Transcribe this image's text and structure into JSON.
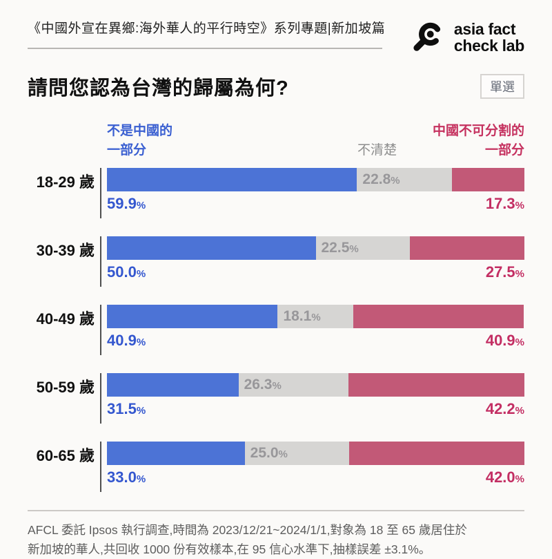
{
  "header": {
    "series_title": "《中國外宣在異鄉:海外華人的平行時空》系列專題|新加坡篇",
    "logo": {
      "icon": "magnifier-logo-icon",
      "line1": "asia fact",
      "line2": "check lab"
    }
  },
  "question": {
    "title": "請問您認為台灣的歸屬為何?",
    "badge": "單選"
  },
  "chart_data": {
    "type": "bar",
    "stacked": true,
    "orientation": "horizontal",
    "xlim": [
      0,
      100
    ],
    "unit": "%",
    "categories": [
      "18-29 歲",
      "30-39 歲",
      "40-49 歲",
      "50-59 歲",
      "60-65 歲"
    ],
    "series": [
      {
        "key": "not-part-of-china",
        "name": "不是中國的一部分",
        "color": "#4c73d6",
        "text_color": "#3457cf",
        "values": [
          59.9,
          50.0,
          40.9,
          31.5,
          33.0
        ]
      },
      {
        "key": "unclear",
        "name": "不清楚",
        "color": "#d6d5d3",
        "text_color": "#98979a",
        "values": [
          22.8,
          22.5,
          18.1,
          26.3,
          25.0
        ]
      },
      {
        "key": "inseparable-part-of-china",
        "name": "中國不可分割的一部分",
        "color": "#c25977",
        "text_color": "#c32e63",
        "values": [
          17.3,
          27.5,
          40.9,
          42.2,
          42.0
        ]
      }
    ],
    "legend": {
      "left": {
        "lines": [
          "不是中國的",
          "一部分"
        ],
        "color": "#3a5fd1"
      },
      "middle": {
        "lines": [
          "不清楚"
        ],
        "color": "#8e8e8e"
      },
      "right": {
        "lines": [
          "中國不可分割的",
          "一部分"
        ],
        "color": "#c5315f"
      }
    },
    "legend_position": "above-first-bar"
  },
  "footer": {
    "line1": "AFCL 委託 Ipsos 執行調查,時間為 2023/12/21~2024/1/1,對象為 18 至 65 歲居住於",
    "line2": "新加坡的華人,共回收 1000 份有效樣本,在 95 信心水準下,抽樣誤差 ±3.1%。"
  }
}
